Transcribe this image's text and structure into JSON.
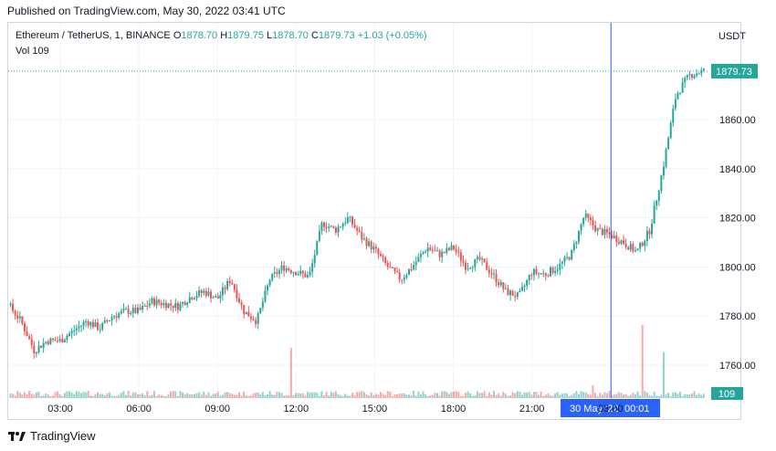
{
  "header": {
    "published": "Published on TradingView.com, May 30, 2022 03:41 UTC"
  },
  "legend": {
    "symbol": "Ethereum / TetherUS, 1, BINANCE",
    "open_label": "O",
    "open": "1878.70",
    "high_label": "H",
    "high": "1879.75",
    "low_label": "L",
    "low": "1878.70",
    "close_label": "C",
    "close": "1879.73",
    "change": "+1.03 (+0.05%)",
    "vol_label": "Vol",
    "vol": "109"
  },
  "price_axis": {
    "currency": "USDT",
    "last_price": "1879.73",
    "last_volume": "109"
  },
  "crosshair": {
    "date_label": "30 May '22",
    "time_label": "00:01"
  },
  "footer": {
    "brand": "TradingView"
  },
  "colors": {
    "up": "#26a69a",
    "down": "#ef5350",
    "crosshair": "#2962ff",
    "last_price": "#26a69a"
  },
  "chart_data": {
    "type": "candlestick",
    "symbol": "Ethereum / TetherUS",
    "interval": "1 minute",
    "exchange": "BINANCE",
    "ylim": [
      1748,
      1890
    ],
    "y_ticks": [
      1760,
      1780,
      1800,
      1820,
      1840,
      1860
    ],
    "x_ticks": [
      "03:00",
      "06:00",
      "09:00",
      "12:00",
      "15:00",
      "18:00",
      "21:00",
      "03:00"
    ],
    "x_hours": [
      0,
      3,
      6,
      9,
      12,
      15,
      18,
      21,
      24,
      27
    ],
    "path_hours": [
      0.5,
      1.0,
      1.5,
      2.0,
      2.5,
      3.0,
      3.5,
      4.0,
      4.5,
      5.0,
      5.5,
      6.0,
      6.5,
      7.0,
      7.5,
      8.0,
      8.5,
      9.0,
      9.5,
      10.0,
      10.5,
      11.0,
      11.5,
      12.0,
      12.5,
      13.0,
      13.5,
      14.0,
      14.5,
      15.0,
      15.5,
      16.0,
      16.5,
      17.0,
      17.5,
      18.0,
      18.5,
      19.0,
      19.5,
      20.0,
      20.5,
      21.0,
      21.5,
      22.0,
      22.5,
      23.0,
      23.5,
      24.0,
      24.5,
      25.0,
      25.5,
      26.0,
      26.5,
      27.0,
      27.5
    ],
    "path_prices": [
      1789,
      1785,
      1778,
      1766,
      1770,
      1770,
      1774,
      1778,
      1775,
      1780,
      1782,
      1782,
      1786,
      1785,
      1784,
      1788,
      1790,
      1787,
      1795,
      1782,
      1778,
      1795,
      1800,
      1798,
      1796,
      1818,
      1815,
      1820,
      1812,
      1807,
      1800,
      1795,
      1801,
      1808,
      1805,
      1808,
      1800,
      1803,
      1797,
      1790,
      1788,
      1798,
      1797,
      1800,
      1805,
      1821,
      1815,
      1813,
      1810,
      1806,
      1815,
      1840,
      1870,
      1878,
      1879.73
    ],
    "volume_spikes": [
      {
        "hour": 11.8,
        "rel": 0.55
      },
      {
        "hour": 23.3,
        "rel": 0.14
      },
      {
        "hour": 25.2,
        "rel": 0.8
      },
      {
        "hour": 26.0,
        "rel": 0.5
      }
    ],
    "last_price": 1879.73,
    "crosshair_hour": 24.02
  }
}
